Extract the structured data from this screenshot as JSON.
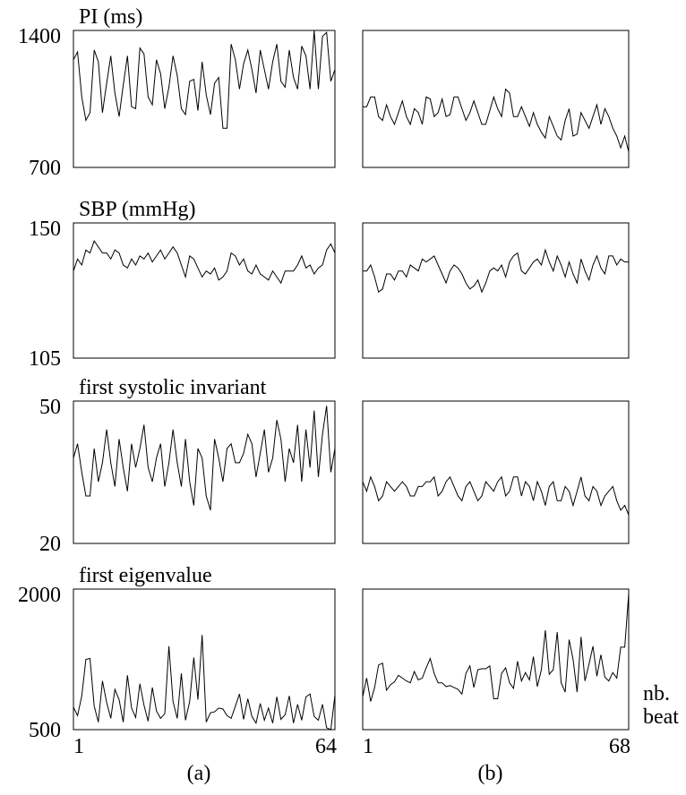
{
  "chart_data": [
    {
      "type": "line",
      "title": "PI (ms)",
      "ylim": [
        700,
        1400
      ],
      "yticks": [
        1400,
        700
      ],
      "xlim": [
        1,
        64
      ],
      "values": [
        1250,
        1290,
        1060,
        940,
        980,
        1300,
        1240,
        980,
        1130,
        1270,
        1080,
        960,
        1120,
        1270,
        1010,
        1000,
        1310,
        1280,
        1060,
        1020,
        1250,
        1180,
        1000,
        1110,
        1270,
        1170,
        1000,
        970,
        1140,
        1150,
        990,
        1240,
        1070,
        970,
        1130,
        1160,
        900,
        900,
        1330,
        1250,
        1100,
        1230,
        1300,
        1200,
        1080,
        1300,
        1200,
        1100,
        1240,
        1330,
        1140,
        1110,
        1300,
        1160,
        1100,
        1320,
        1270,
        1100,
        1400,
        1100,
        1370,
        1390,
        1140,
        1200
      ]
    },
    {
      "type": "line",
      "ylim": [
        700,
        1400
      ],
      "xlim": [
        1,
        68
      ],
      "values": [
        1010,
        1010,
        1060,
        1060,
        960,
        940,
        1020,
        960,
        920,
        980,
        1040,
        960,
        920,
        1000,
        980,
        920,
        1060,
        1050,
        960,
        980,
        1050,
        960,
        970,
        1060,
        1060,
        1000,
        940,
        980,
        1040,
        980,
        920,
        920,
        990,
        1060,
        1000,
        960,
        1100,
        1080,
        960,
        960,
        1010,
        960,
        910,
        980,
        920,
        880,
        850,
        960,
        910,
        860,
        840,
        940,
        1000,
        860,
        870,
        980,
        940,
        900,
        960,
        1020,
        920,
        1000,
        960,
        900,
        860,
        800,
        860,
        780
      ]
    },
    {
      "type": "line",
      "title": "SBP (mmHg)",
      "ylim": [
        105,
        150
      ],
      "yticks": [
        150,
        105
      ],
      "xlim": [
        1,
        64
      ],
      "values": [
        134,
        138,
        136,
        141,
        140,
        144,
        142,
        140,
        140,
        138,
        141,
        140,
        136,
        135,
        138,
        136,
        139,
        138,
        140,
        137,
        139,
        141,
        138,
        140,
        142,
        140,
        136,
        132,
        139,
        138,
        135,
        132,
        134,
        133,
        135,
        131,
        132,
        134,
        140,
        139,
        136,
        138,
        134,
        133,
        136,
        133,
        132,
        131,
        134,
        132,
        130,
        134,
        134,
        134,
        136,
        139,
        135,
        136,
        133,
        135,
        136,
        141,
        143,
        140
      ]
    },
    {
      "type": "line",
      "ylim": [
        105,
        150
      ],
      "xlim": [
        1,
        68
      ],
      "values": [
        134,
        134,
        136,
        132,
        127,
        128,
        133,
        133,
        131,
        134,
        134,
        132,
        136,
        135,
        134,
        138,
        137,
        138,
        139,
        136,
        133,
        130,
        134,
        136,
        135,
        133,
        130,
        128,
        129,
        131,
        127,
        130,
        134,
        135,
        134,
        136,
        132,
        137,
        139,
        140,
        134,
        133,
        135,
        137,
        138,
        136,
        141,
        137,
        134,
        139,
        136,
        132,
        137,
        133,
        130,
        138,
        134,
        131,
        136,
        139,
        135,
        133,
        139,
        139,
        136,
        138,
        137,
        137
      ]
    },
    {
      "type": "line",
      "title": "first systolic invariant",
      "ylim": [
        20,
        50
      ],
      "yticks": [
        50,
        20
      ],
      "xlim": [
        1,
        64
      ],
      "values": [
        38,
        41,
        35,
        30,
        30,
        40,
        33,
        37,
        44,
        37,
        32,
        42,
        36,
        31,
        41,
        36,
        40,
        45,
        36,
        33,
        38,
        41,
        32,
        37,
        44,
        37,
        32,
        42,
        33,
        28,
        40,
        38,
        30,
        27,
        42,
        38,
        33,
        40,
        41,
        37,
        37,
        39,
        43,
        41,
        34,
        39,
        44,
        35,
        38,
        46,
        42,
        33,
        40,
        37,
        45,
        33,
        44,
        36,
        48,
        34,
        43,
        49,
        35,
        40
      ]
    },
    {
      "type": "line",
      "ylim": [
        20,
        50
      ],
      "xlim": [
        1,
        68
      ],
      "values": [
        33,
        31,
        34,
        32,
        29,
        30,
        33,
        32,
        31,
        32,
        33,
        32,
        30,
        30,
        32,
        32,
        33,
        33,
        34,
        30,
        31,
        33,
        34,
        32,
        30,
        29,
        32,
        33,
        31,
        29,
        30,
        33,
        32,
        31,
        33,
        34,
        30,
        31,
        34,
        34,
        30,
        33,
        32,
        29,
        33,
        31,
        28,
        32,
        33,
        29,
        29,
        32,
        31,
        28,
        31,
        34,
        30,
        29,
        32,
        31,
        28,
        30,
        31,
        32,
        29,
        27,
        28,
        26
      ]
    },
    {
      "type": "line",
      "title": "first eigenvalue",
      "ylim": [
        500,
        2000
      ],
      "yticks": [
        2000,
        500
      ],
      "xlim": [
        1,
        64
      ],
      "xticks": [
        1,
        64
      ],
      "xlabel": "(a)",
      "values": [
        740,
        650,
        860,
        1250,
        1260,
        750,
        580,
        1020,
        790,
        620,
        930,
        820,
        580,
        1080,
        730,
        630,
        990,
        760,
        590,
        950,
        700,
        620,
        670,
        1390,
        800,
        620,
        1100,
        600,
        800,
        1270,
        820,
        1510,
        580,
        680,
        690,
        730,
        720,
        650,
        620,
        750,
        880,
        610,
        830,
        640,
        570,
        780,
        600,
        730,
        570,
        850,
        610,
        660,
        860,
        570,
        770,
        600,
        850,
        880,
        640,
        600,
        770,
        520,
        500,
        870
      ]
    },
    {
      "type": "line",
      "ylim": [
        500,
        2000
      ],
      "xlim": [
        1,
        68
      ],
      "xticks": [
        1,
        68
      ],
      "xlabel": "(b)",
      "annotation": "nb. beat",
      "values": [
        850,
        1050,
        800,
        950,
        1190,
        1210,
        920,
        980,
        1010,
        1080,
        1050,
        1020,
        1000,
        1120,
        1030,
        1050,
        1160,
        1260,
        1100,
        1000,
        1000,
        960,
        970,
        950,
        930,
        880,
        1100,
        1180,
        950,
        1140,
        1150,
        1150,
        1180,
        830,
        830,
        1100,
        1160,
        1000,
        940,
        1230,
        1020,
        1110,
        1030,
        1280,
        960,
        1140,
        1560,
        1090,
        1140,
        1540,
        1000,
        900,
        1460,
        1250,
        900,
        1490,
        1020,
        1200,
        1390,
        1070,
        1300,
        1060,
        1020,
        1110,
        1050,
        1380,
        1380,
        1950
      ]
    }
  ]
}
